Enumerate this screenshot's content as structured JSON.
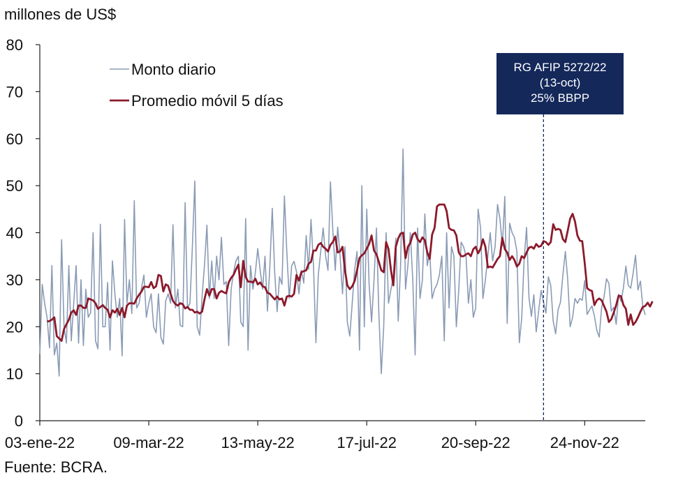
{
  "chart_data": {
    "type": "line",
    "ylabel": "millones de US$",
    "ylim": [
      0,
      80
    ],
    "yticks": [
      0,
      10,
      20,
      30,
      40,
      50,
      60,
      70,
      80
    ],
    "xtick_labels": [
      "03-ene-22",
      "09-mar-22",
      "13-may-22",
      "17-jul-22",
      "20-sep-22",
      "24-nov-22"
    ],
    "xtick_indices": [
      0,
      45,
      90,
      135,
      180,
      225
    ],
    "legend_position": "top-left",
    "series": [
      {
        "name": "Monto diario",
        "color": "#8a9bb5",
        "values": [
          14.2,
          29,
          25,
          22,
          15.5,
          33,
          14,
          16.5,
          9.5,
          38.5,
          20,
          16.5,
          33,
          17,
          25,
          33,
          16.5,
          30,
          16,
          28,
          22,
          23,
          40,
          17,
          15.3,
          41.8,
          20,
          20,
          29.4,
          15,
          34,
          27,
          22,
          26,
          13.8,
          42.8,
          25,
          30,
          22.8,
          46.8,
          24,
          25,
          28.3,
          31,
          22,
          25,
          27,
          20,
          18.7,
          27,
          17.7,
          16.3,
          25.5,
          27,
          25,
          41.7,
          24,
          28,
          20.3,
          20,
          46.4,
          24,
          25,
          37,
          51,
          20,
          18.2,
          26.5,
          33,
          41.6,
          26,
          34,
          26,
          35,
          30,
          39,
          29,
          29.6,
          16,
          28,
          31.5,
          34,
          35,
          21,
          20,
          43,
          15,
          33,
          28,
          31.5,
          36.6,
          32,
          28,
          35,
          23.3,
          33,
          45.2,
          31.4,
          23.2,
          30.6,
          29,
          47.8,
          36,
          26,
          33,
          33.9,
          31.7,
          27,
          32,
          29.3,
          39.4,
          32.2,
          42.8,
          33.1,
          16.6,
          31,
          36,
          41,
          35.1,
          32,
          50.8,
          40.6,
          32,
          41.2,
          35,
          27,
          37,
          21,
          18,
          25,
          32,
          36,
          15,
          50,
          20,
          45,
          29,
          21,
          30,
          41,
          23,
          10,
          20,
          40,
          25,
          28,
          30.7,
          38.8,
          21.2,
          33.2,
          57.8,
          28,
          33,
          40,
          30,
          14,
          41,
          26,
          30,
          44,
          33,
          36,
          26,
          28,
          29,
          31,
          35,
          17,
          40,
          24,
          37,
          35,
          20,
          28,
          38,
          37,
          35,
          25,
          30,
          22,
          24,
          45,
          41,
          26,
          30,
          35,
          40,
          34,
          37,
          46,
          43,
          37.2,
          47.7,
          20.7,
          42,
          40,
          39,
          36,
          16.6,
          21.8,
          34.4,
          41.1,
          26.2,
          22.2,
          26.8,
          18.9,
          23.4,
          27.7,
          25.3,
          22.9,
          30.6,
          28.8,
          21.2,
          18.5,
          23.6,
          25.2,
          31,
          36,
          30,
          20,
          22,
          26,
          25,
          26,
          25.6,
          29.8,
          22.6,
          23.6,
          24.4,
          22.3,
          19.3,
          17.8,
          24.2,
          26.3,
          30.2,
          29.2,
          23.3,
          24.1,
          20.5,
          26.9,
          25.4,
          28.3,
          32.9,
          28.8,
          28.2,
          31.4,
          35.2,
          27.8,
          29.7,
          24.3,
          22.5
        ]
      },
      {
        "name": "Promedio móvil 5 días",
        "color": "#8b1a2b",
        "values": [
          null,
          null,
          null,
          21.1,
          21.2,
          21.5,
          22,
          18,
          17.5,
          17,
          19.5,
          20.5,
          21.5,
          23,
          23.5,
          22.5,
          24.5,
          24.5,
          24,
          24,
          26,
          25.8,
          25.6,
          25,
          23.8,
          24.2,
          24.6,
          24,
          23.6,
          22,
          23.5,
          23,
          23.8,
          22.5,
          24,
          22,
          24.5,
          25,
          25,
          24.9,
          26,
          26.8,
          27.5,
          28.5,
          28.5,
          28.4,
          29.5,
          28.2,
          28.6,
          31,
          30.8,
          27.5,
          29,
          28.7,
          27,
          25.5,
          24.8,
          24.5,
          25,
          24.8,
          23.9,
          24.2,
          23.6,
          23.6,
          23,
          23.2,
          22.8,
          23.2,
          25.8,
          28,
          26.6,
          28,
          28,
          26,
          27.2,
          27.6,
          27.3,
          27.1,
          29.4,
          30.4,
          31,
          32.2,
          33.2,
          28.4,
          34,
          30.6,
          29.6,
          29.6,
          29.4,
          30.2,
          29,
          29.4,
          28.6,
          28.4,
          27.2,
          27,
          26.4,
          25.8,
          26.4,
          25.8,
          26,
          24.5,
          26.4,
          26.6,
          26.4,
          27,
          31,
          29.8,
          31.6,
          31.8,
          32,
          33.4,
          33.8,
          36.2,
          36.2,
          37.4,
          37.8,
          37,
          36.6,
          36,
          37.4,
          38,
          39.2,
          35.8,
          36,
          37,
          32,
          28.8,
          28,
          28.6,
          29.7,
          32,
          34.6,
          35.2,
          35.6,
          36.6,
          37.6,
          39.4,
          36.2,
          35.4,
          33.8,
          32,
          31.6,
          38,
          36.5,
          32,
          28.8,
          37,
          38.8,
          39.8,
          40,
          34.6,
          37,
          37.8,
          39.6,
          40,
          38.6,
          38,
          39,
          38.4,
          35.8,
          34.4,
          39.6,
          41,
          45.6,
          46,
          46,
          46,
          44.6,
          41,
          40.6,
          40.5,
          39.4,
          35.8,
          35,
          35,
          35.4,
          35.6,
          35,
          36.5,
          37,
          35.6,
          36.6,
          38.6,
          37,
          32.6,
          32.8,
          32.6,
          33.5,
          34.4,
          35,
          38.9,
          36.5,
          35.8,
          34.2,
          35,
          34.2,
          32.8,
          33.4,
          35,
          34.6,
          35.8,
          36.8,
          37,
          36.6,
          37.6,
          37,
          37.2,
          38.2,
          38,
          37.4,
          38,
          41.8,
          40.6,
          40.8,
          40.6,
          38.6,
          38,
          40.4,
          43,
          44,
          42.4,
          39.4,
          38.3,
          38.2,
          33.6,
          28.2,
          27.8,
          27.6,
          24.6,
          25.6,
          26,
          25.6,
          24.4,
          23.2,
          21,
          21.6,
          23,
          24.6,
          26.6,
          26.5,
          24.6,
          23.8,
          20.4,
          22.6,
          20.4,
          21,
          22,
          23.2,
          24.2,
          24.4,
          25.1,
          24.3,
          25.4
        ]
      }
    ],
    "annotation": {
      "lines": [
        "RG AFIP 5272/22",
        "(13-oct)",
        "25% BBPP"
      ],
      "x_index": 208
    },
    "source": "Fuente: BCRA."
  }
}
